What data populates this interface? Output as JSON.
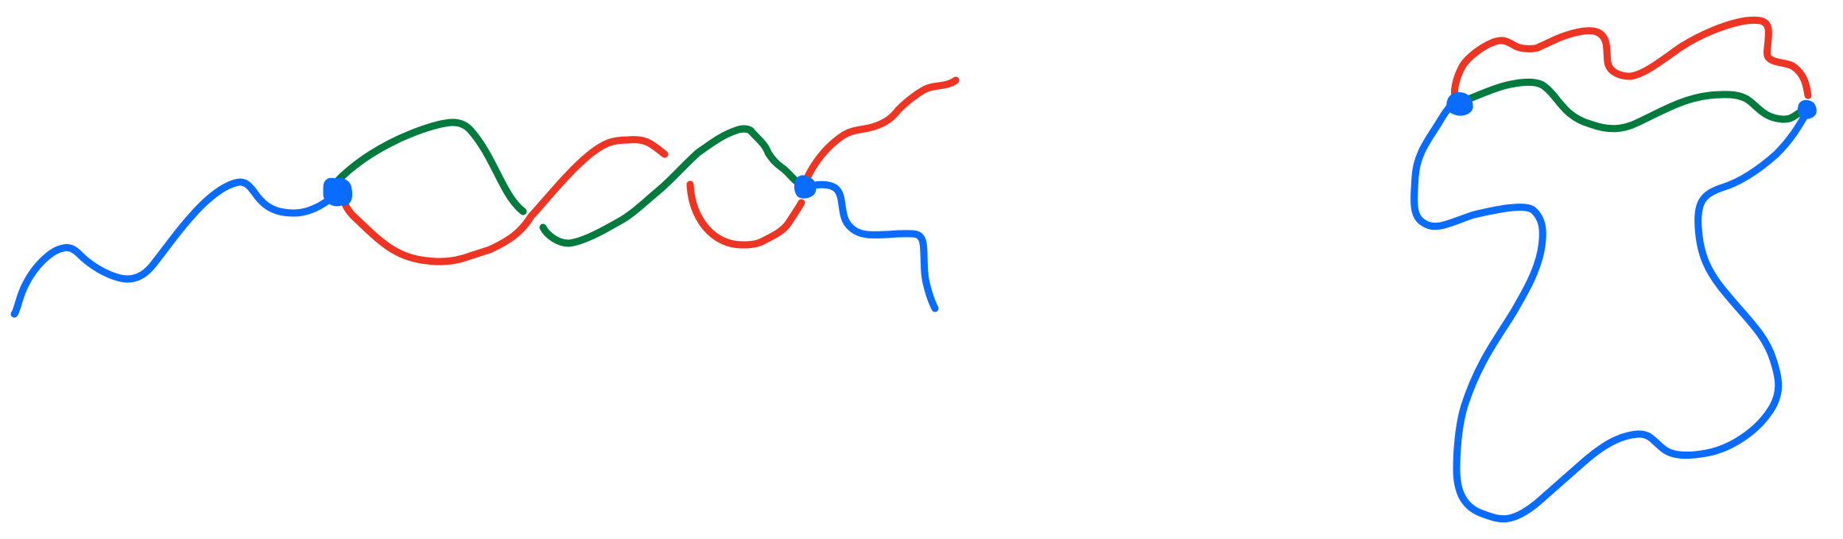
{
  "diagram": {
    "colors": {
      "blue": "#0a6cff",
      "green": "#007a3d",
      "red": "#ee3524",
      "background": "#ffffff"
    },
    "left_figure": {
      "strands": [
        {
          "name": "blue-strand-left",
          "color": "blue"
        },
        {
          "name": "blue-strand-right",
          "color": "blue"
        },
        {
          "name": "green-arc-upper",
          "color": "green"
        },
        {
          "name": "green-strand-middle",
          "color": "green"
        },
        {
          "name": "red-strand-lower",
          "color": "red"
        },
        {
          "name": "red-arc-middle",
          "color": "red"
        },
        {
          "name": "red-strand-right",
          "color": "red"
        }
      ],
      "nodes": [
        {
          "name": "node-left",
          "color": "blue"
        },
        {
          "name": "node-right",
          "color": "blue"
        }
      ]
    },
    "right_figure": {
      "strands": [
        {
          "name": "red-upper-arc",
          "color": "red"
        },
        {
          "name": "green-middle-arc",
          "color": "green"
        },
        {
          "name": "blue-outer-loop",
          "color": "blue"
        }
      ],
      "nodes": [
        {
          "name": "node-upper-left",
          "color": "blue"
        },
        {
          "name": "node-upper-right",
          "color": "blue"
        }
      ]
    }
  }
}
